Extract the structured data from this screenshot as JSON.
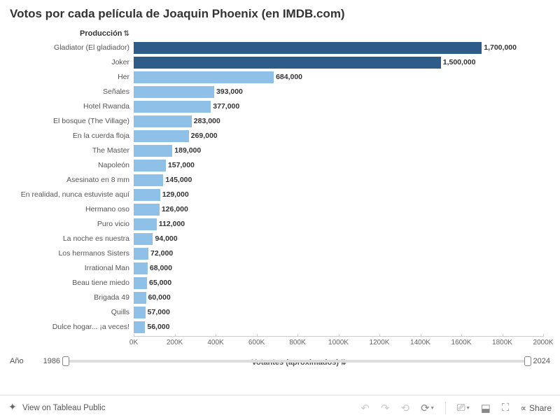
{
  "title": "Votos por cada película de Joaquin Phoenix (en IMDB.com)",
  "chart": {
    "type": "bar",
    "y_header": "Producción",
    "x_label": "Votantes (aproximados)",
    "x_max": 2000000,
    "x_ticks": [
      {
        "pos": 0,
        "label": "0K"
      },
      {
        "pos": 200000,
        "label": "200K"
      },
      {
        "pos": 400000,
        "label": "400K"
      },
      {
        "pos": 600000,
        "label": "600K"
      },
      {
        "pos": 800000,
        "label": "800K"
      },
      {
        "pos": 1000000,
        "label": "1000K"
      },
      {
        "pos": 1200000,
        "label": "1200K"
      },
      {
        "pos": 1400000,
        "label": "1400K"
      },
      {
        "pos": 1600000,
        "label": "1600K"
      },
      {
        "pos": 1800000,
        "label": "1800K"
      },
      {
        "pos": 2000000,
        "label": "2000K"
      }
    ],
    "colors": {
      "dark": "#2e5c8a",
      "light": "#8fc1e8"
    },
    "bars": [
      {
        "label": "Gladiator (El gladiador)",
        "value": 1700000,
        "display": "1,700,000",
        "dark": true
      },
      {
        "label": "Joker",
        "value": 1500000,
        "display": "1,500,000",
        "dark": true
      },
      {
        "label": "Her",
        "value": 684000,
        "display": "684,000",
        "dark": false
      },
      {
        "label": "Señales",
        "value": 393000,
        "display": "393,000",
        "dark": false
      },
      {
        "label": "Hotel Rwanda",
        "value": 377000,
        "display": "377,000",
        "dark": false
      },
      {
        "label": "El bosque (The Village)",
        "value": 283000,
        "display": "283,000",
        "dark": false
      },
      {
        "label": "En la cuerda floja",
        "value": 269000,
        "display": "269,000",
        "dark": false
      },
      {
        "label": "The Master",
        "value": 189000,
        "display": "189,000",
        "dark": false
      },
      {
        "label": "Napoleón",
        "value": 157000,
        "display": "157,000",
        "dark": false
      },
      {
        "label": "Asesinato en 8 mm",
        "value": 145000,
        "display": "145,000",
        "dark": false
      },
      {
        "label": "En realidad, nunca estuviste aquí",
        "value": 129000,
        "display": "129,000",
        "dark": false
      },
      {
        "label": "Hermano oso",
        "value": 126000,
        "display": "126,000",
        "dark": false
      },
      {
        "label": "Puro vicio",
        "value": 112000,
        "display": "112,000",
        "dark": false
      },
      {
        "label": "La noche es nuestra",
        "value": 94000,
        "display": "94,000",
        "dark": false
      },
      {
        "label": "Los hermanos Sisters",
        "value": 72000,
        "display": "72,000",
        "dark": false
      },
      {
        "label": "Irrational Man",
        "value": 68000,
        "display": "68,000",
        "dark": false
      },
      {
        "label": "Beau tiene miedo",
        "value": 65000,
        "display": "65,000",
        "dark": false
      },
      {
        "label": "Brigada 49",
        "value": 60000,
        "display": "60,000",
        "dark": false
      },
      {
        "label": "Quills",
        "value": 57000,
        "display": "57,000",
        "dark": false
      },
      {
        "label": "Dulce hogar... ¡a veces!",
        "value": 56000,
        "display": "56,000",
        "dark": false
      }
    ]
  },
  "slider": {
    "label": "Año",
    "min": "1986",
    "max": "2024"
  },
  "footer": {
    "view_label": "View on Tableau Public",
    "share_label": "Share"
  }
}
